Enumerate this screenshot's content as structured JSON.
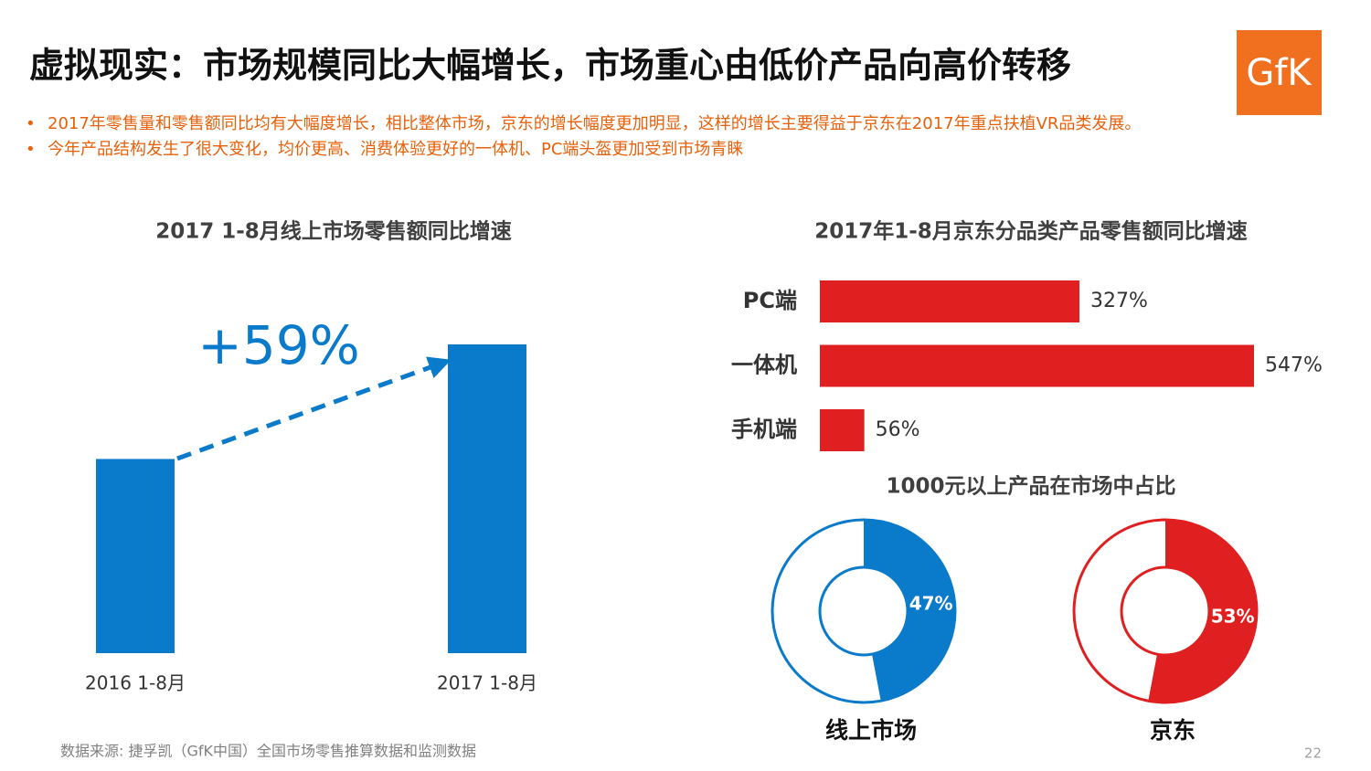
{
  "header": {
    "title": "虚拟现实：市场规模同比大幅增长，市场重心由低价产品向高价转移",
    "logo": "GfK"
  },
  "bullets": [
    "2017年零售量和零售额同比均有大幅度增长，相比整体市场，京东的增长幅度更加明显，这样的增长主要得益于京东在2017年重点扶植VR品类发展。",
    "今年产品结构发生了很大变化，均价更高、消费体验更好的一体机、PC端头盔更加受到市场青睐"
  ],
  "chart_data": [
    {
      "type": "bar",
      "title": "2017 1-8月线上市场零售额同比增速",
      "categories": [
        "2016 1-8月",
        "2017 1-8月"
      ],
      "values": [
        100,
        159
      ],
      "color": "#0a7acb",
      "annotation": "+59%"
    },
    {
      "type": "hbar",
      "title": "2017年1-8月京东分品类产品零售额同比增速",
      "categories": [
        "PC端",
        "一体机",
        "手机端"
      ],
      "values": [
        327,
        547,
        56
      ],
      "value_labels": [
        "327%",
        "547%",
        "56%"
      ],
      "color": "#e02020"
    },
    {
      "type": "donut",
      "title": "1000元以上产品在市场中占比",
      "categories": [
        "线上市场",
        "京东"
      ],
      "values": [
        47,
        53
      ],
      "value_labels": [
        "47%",
        "53%"
      ],
      "colors": [
        "#0a7acb",
        "#e02020"
      ]
    }
  ],
  "footer": {
    "source": "数据来源: 捷孚凯（GfK中国）全国市场零售推算数据和监测数据",
    "page": "22"
  }
}
